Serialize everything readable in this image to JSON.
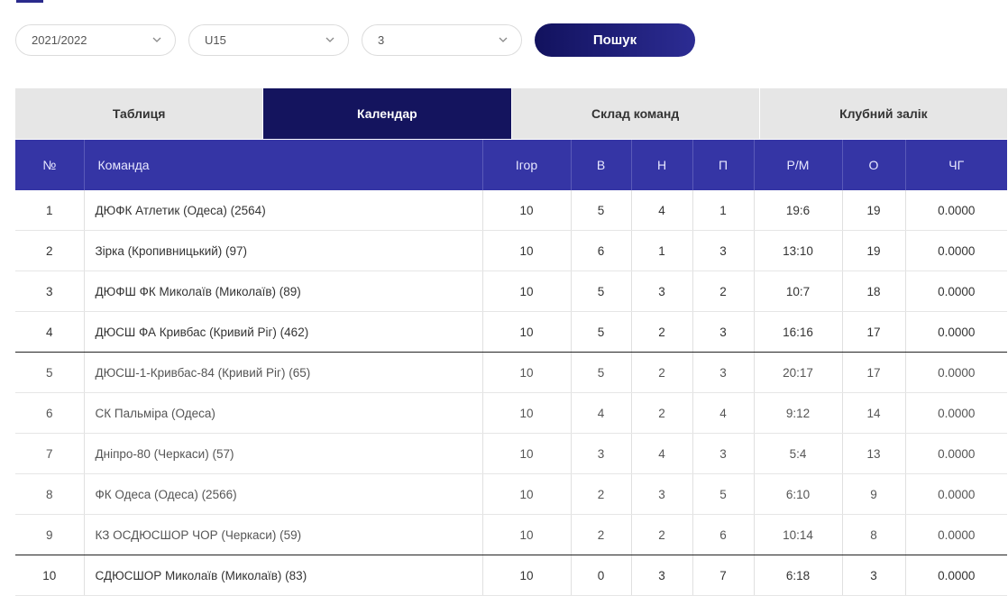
{
  "filters": {
    "season": "2021/2022",
    "age_group": "U15",
    "division": "3",
    "search_label": "Пошук"
  },
  "tabs": [
    {
      "label": "Таблиця",
      "active": false
    },
    {
      "label": "Календар",
      "active": true
    },
    {
      "label": "Склад команд",
      "active": false
    },
    {
      "label": "Клубний залік",
      "active": false
    }
  ],
  "columns": [
    "№",
    "Команда",
    "Ігор",
    "В",
    "Н",
    "П",
    "Р/М",
    "О",
    "ЧГ"
  ],
  "rows": [
    {
      "num": "1",
      "team": "ДЮФК Атлетик (Одеса) (2564)",
      "games": "10",
      "w": "5",
      "d": "4",
      "l": "1",
      "gd": "19:6",
      "pts": "19",
      "fp": "0.0000"
    },
    {
      "num": "2",
      "team": "Зірка (Кропивницький) (97)",
      "games": "10",
      "w": "6",
      "d": "1",
      "l": "3",
      "gd": "13:10",
      "pts": "19",
      "fp": "0.0000"
    },
    {
      "num": "3",
      "team": "ДЮФШ ФК Миколаїв (Миколаїв) (89)",
      "games": "10",
      "w": "5",
      "d": "3",
      "l": "2",
      "gd": "10:7",
      "pts": "18",
      "fp": "0.0000"
    },
    {
      "num": "4",
      "team": "ДЮСШ ФА Кривбас (Кривий Ріг) (462)",
      "games": "10",
      "w": "5",
      "d": "2",
      "l": "3",
      "gd": "16:16",
      "pts": "17",
      "fp": "0.0000"
    },
    {
      "num": "5",
      "team": "ДЮСШ-1-Кривбас-84 (Кривий Ріг) (65)",
      "games": "10",
      "w": "5",
      "d": "2",
      "l": "3",
      "gd": "20:17",
      "pts": "17",
      "fp": "0.0000"
    },
    {
      "num": "6",
      "team": "СК Пальміра (Одеса)",
      "games": "10",
      "w": "4",
      "d": "2",
      "l": "4",
      "gd": "9:12",
      "pts": "14",
      "fp": "0.0000"
    },
    {
      "num": "7",
      "team": "Дніпро-80 (Черкаси) (57)",
      "games": "10",
      "w": "3",
      "d": "4",
      "l": "3",
      "gd": "5:4",
      "pts": "13",
      "fp": "0.0000"
    },
    {
      "num": "8",
      "team": "ФК Одеса (Одеса) (2566)",
      "games": "10",
      "w": "2",
      "d": "3",
      "l": "5",
      "gd": "6:10",
      "pts": "9",
      "fp": "0.0000"
    },
    {
      "num": "9",
      "team": "КЗ ОСДЮСШОР ЧОР (Черкаси) (59)",
      "games": "10",
      "w": "2",
      "d": "2",
      "l": "6",
      "gd": "10:14",
      "pts": "8",
      "fp": "0.0000"
    },
    {
      "num": "10",
      "team": "СДЮСШОР Миколаїв (Миколаїв) (83)",
      "games": "10",
      "w": "0",
      "d": "3",
      "l": "7",
      "gd": "6:18",
      "pts": "3",
      "fp": "0.0000"
    }
  ],
  "colors": {
    "accent": "#14145e",
    "header": "#3535a5"
  }
}
